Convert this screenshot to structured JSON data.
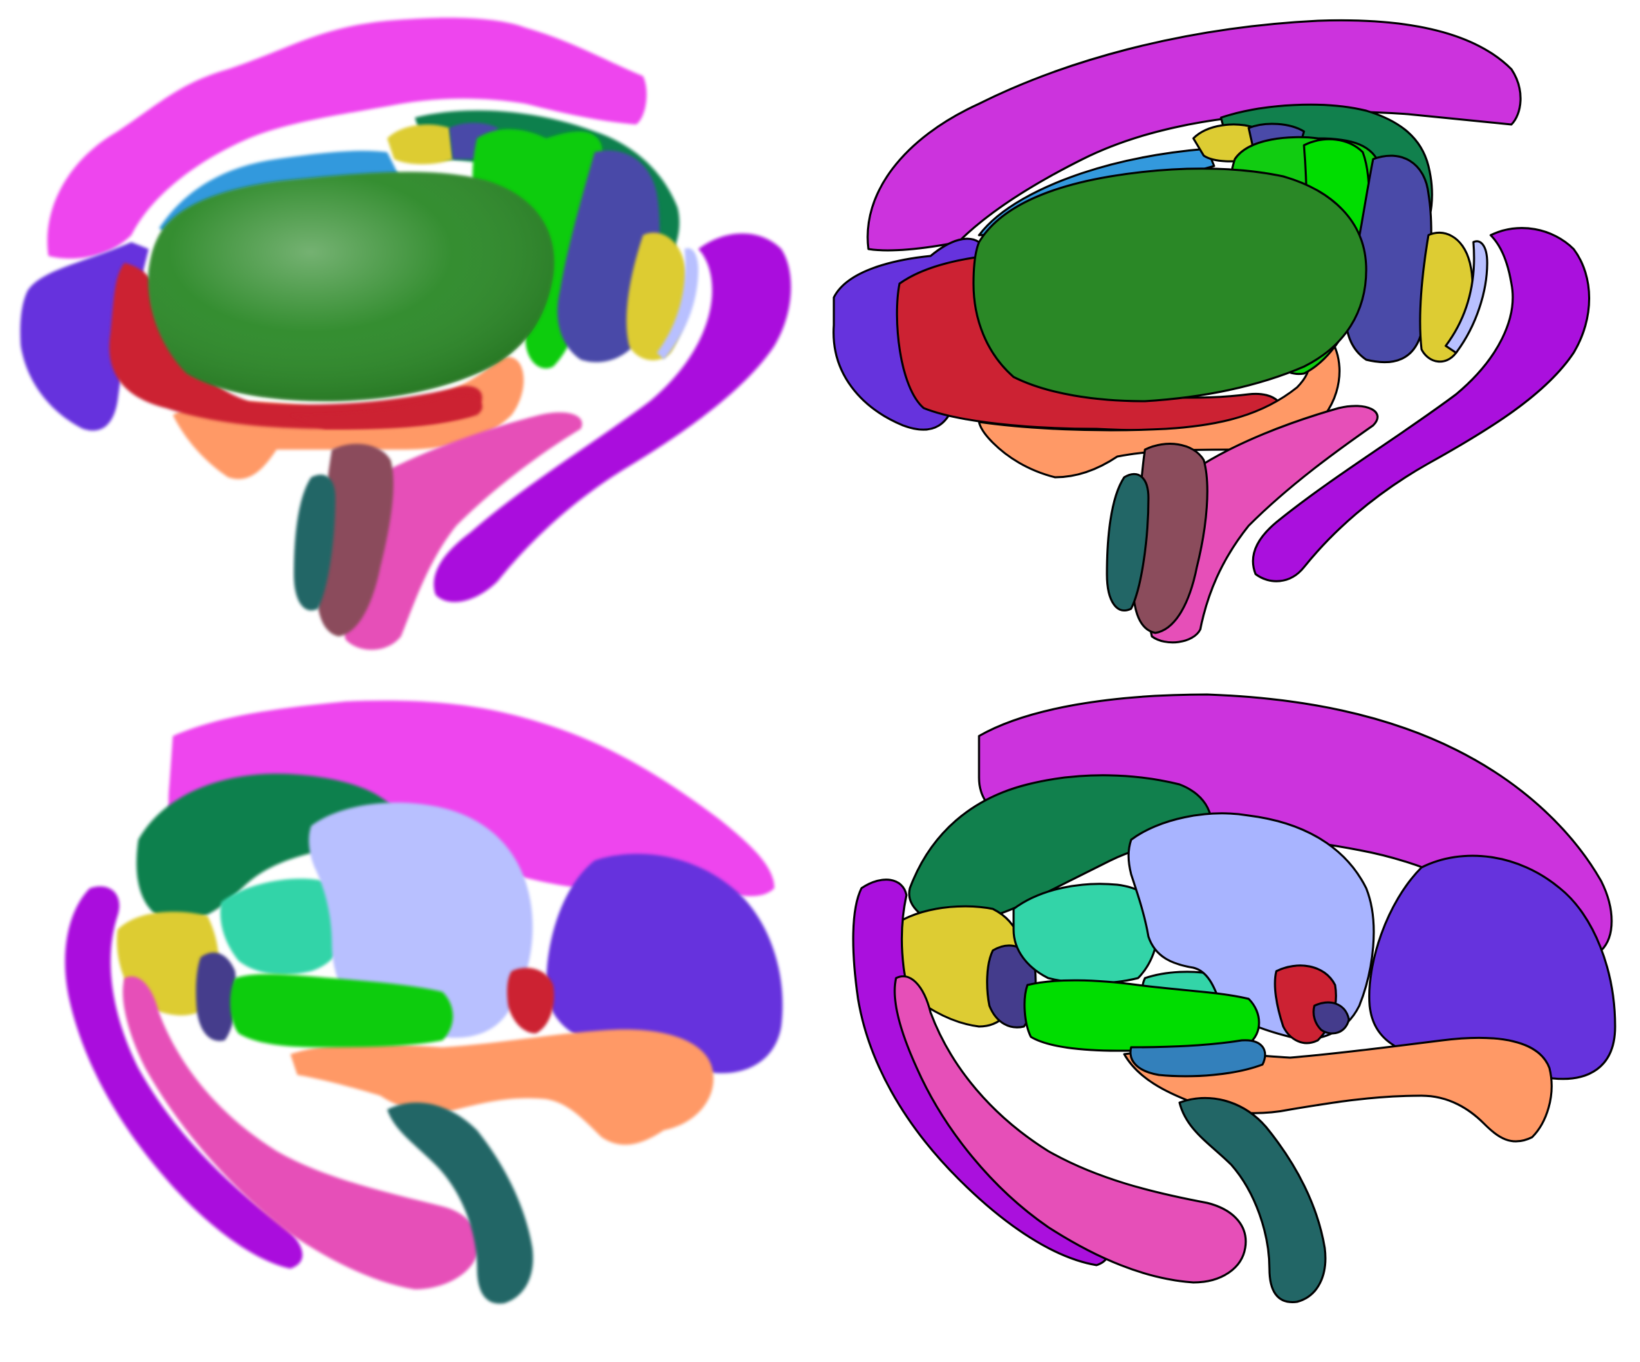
{
  "colors": {
    "magenta": "#cc33dd",
    "magenta_3d": "#ee44ee",
    "violet": "#aa10dd",
    "purple_blue": "#6633dd",
    "red": "#cc2233",
    "dark_green": "#2a8826",
    "teal_green": "#11804d",
    "light_blue": "#3399dd",
    "steel_blue": "#3380bb",
    "yellow": "#ddcc33",
    "slate_blue": "#4a4aa8",
    "bright_green": "#11cc11",
    "lime": "#00dd00",
    "salmon": "#ff9966",
    "mauve": "#8b4c5c",
    "dark_teal": "#226666",
    "pink": "#e64fb8",
    "lavender": "#a8b4ff",
    "aqua": "#33d4a8",
    "indigo": "#443c8c"
  },
  "panels": [
    {
      "id": "top-left",
      "style": "3d-render",
      "view": "lateral"
    },
    {
      "id": "top-right",
      "style": "flat-outline",
      "view": "lateral"
    },
    {
      "id": "bottom-left",
      "style": "3d-render",
      "view": "medial"
    },
    {
      "id": "bottom-right",
      "style": "flat-outline",
      "view": "medial"
    }
  ]
}
